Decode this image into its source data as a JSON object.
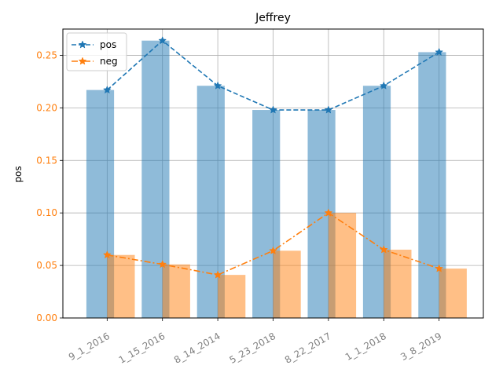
{
  "chart_data": {
    "type": "bar",
    "title": "Jeffrey",
    "ylabel": "pos",
    "xlabel": "",
    "categories": [
      "9_1_2016",
      "1_15_2016",
      "8_14_2014",
      "5_23_2018",
      "8_22_2017",
      "1_1_2018",
      "3_8_2019"
    ],
    "ylim": [
      0,
      0.275
    ],
    "yticks": [
      0.0,
      0.05,
      0.1,
      0.15,
      0.2,
      0.25
    ],
    "ytick_labels": [
      "0.00",
      "0.05",
      "0.10",
      "0.15",
      "0.20",
      "0.25"
    ],
    "grid": true,
    "legend_position": "top-left",
    "series": [
      {
        "name": "pos",
        "values": [
          0.217,
          0.264,
          0.221,
          0.198,
          0.198,
          0.221,
          0.253
        ],
        "bar_color": "#1f77b4",
        "line_color": "#1f77b4",
        "line_style": "dashed",
        "marker": "star"
      },
      {
        "name": "neg",
        "values": [
          0.06,
          0.051,
          0.041,
          0.064,
          0.1,
          0.065,
          0.047
        ],
        "bar_color": "#ff7f0e",
        "line_color": "#ff7f0e",
        "line_style": "dash-dot",
        "marker": "star"
      }
    ],
    "ytick_color": "#ff7f0e",
    "xtick_color": "#808080"
  }
}
